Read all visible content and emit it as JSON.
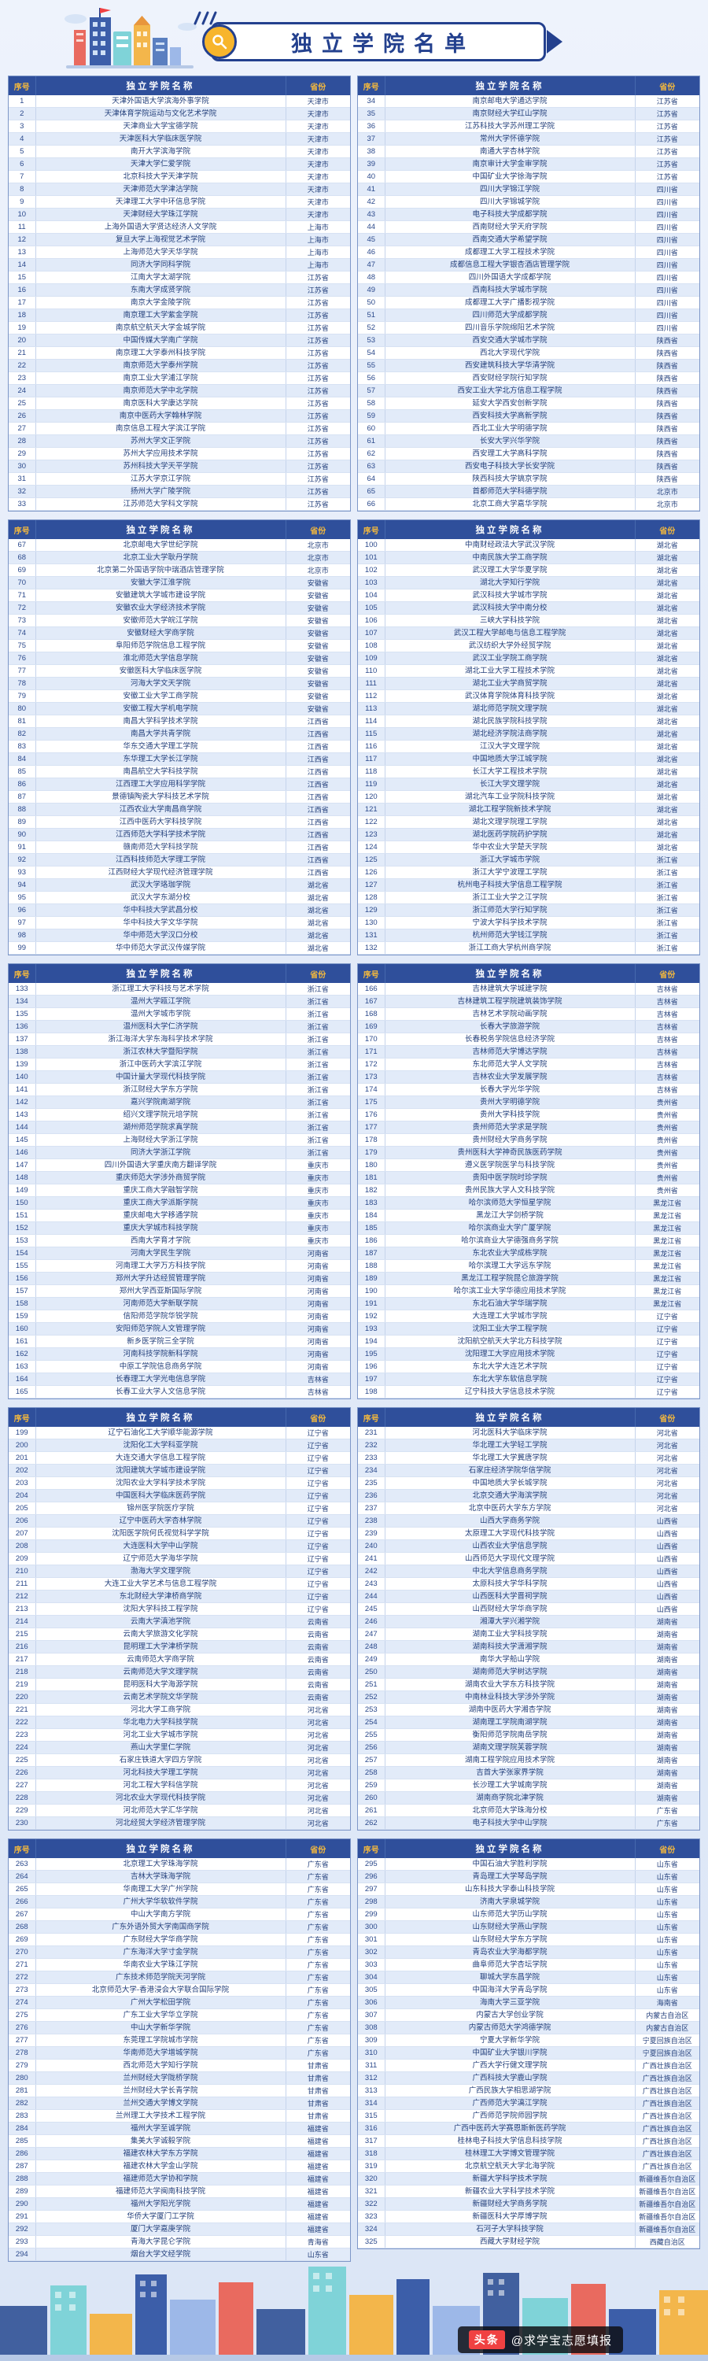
{
  "page": {
    "title": "独立学院名单"
  },
  "footer": {
    "source": "头条",
    "handle": "@求学宝志愿填报"
  },
  "colors": {
    "navy": "#23408e",
    "header_blue": "#2f4f9b",
    "gold": "#f5b93c",
    "alt_row": "#e2ebf9"
  },
  "table": {
    "headers": [
      "序号",
      "独立学院名称",
      "省份"
    ]
  },
  "colleges": [
    [
      "天津外国语大学滨海外事学院",
      "天津市"
    ],
    [
      "天津体育学院运动与文化艺术学院",
      "天津市"
    ],
    [
      "天津商业大学宝德学院",
      "天津市"
    ],
    [
      "天津医科大学临床医学院",
      "天津市"
    ],
    [
      "南开大学滨海学院",
      "天津市"
    ],
    [
      "天津大学仁爱学院",
      "天津市"
    ],
    [
      "北京科技大学天津学院",
      "天津市"
    ],
    [
      "天津师范大学津沽学院",
      "天津市"
    ],
    [
      "天津理工大学中环信息学院",
      "天津市"
    ],
    [
      "天津财经大学珠江学院",
      "天津市"
    ],
    [
      "上海外国语大学贤达经济人文学院",
      "上海市"
    ],
    [
      "复旦大学上海视觉艺术学院",
      "上海市"
    ],
    [
      "上海师范大学天华学院",
      "上海市"
    ],
    [
      "同济大学同科学院",
      "上海市"
    ],
    [
      "江南大学太湖学院",
      "江苏省"
    ],
    [
      "东南大学成贤学院",
      "江苏省"
    ],
    [
      "南京大学金陵学院",
      "江苏省"
    ],
    [
      "南京理工大学紫金学院",
      "江苏省"
    ],
    [
      "南京航空航天大学金城学院",
      "江苏省"
    ],
    [
      "中国传媒大学南广学院",
      "江苏省"
    ],
    [
      "南京理工大学泰州科技学院",
      "江苏省"
    ],
    [
      "南京师范大学泰州学院",
      "江苏省"
    ],
    [
      "南京工业大学浦江学院",
      "江苏省"
    ],
    [
      "南京师范大学中北学院",
      "江苏省"
    ],
    [
      "南京医科大学康达学院",
      "江苏省"
    ],
    [
      "南京中医药大学翰林学院",
      "江苏省"
    ],
    [
      "南京信息工程大学滨江学院",
      "江苏省"
    ],
    [
      "苏州大学文正学院",
      "江苏省"
    ],
    [
      "苏州大学应用技术学院",
      "江苏省"
    ],
    [
      "苏州科技大学天平学院",
      "江苏省"
    ],
    [
      "江苏大学京江学院",
      "江苏省"
    ],
    [
      "扬州大学广陵学院",
      "江苏省"
    ],
    [
      "江苏师范大学科文学院",
      "江苏省"
    ],
    [
      "南京邮电大学通达学院",
      "江苏省"
    ],
    [
      "南京财经大学红山学院",
      "江苏省"
    ],
    [
      "江苏科技大学苏州理工学院",
      "江苏省"
    ],
    [
      "常州大学怀德学院",
      "江苏省"
    ],
    [
      "南通大学杏林学院",
      "江苏省"
    ],
    [
      "南京审计大学金审学院",
      "江苏省"
    ],
    [
      "中国矿业大学徐海学院",
      "江苏省"
    ],
    [
      "四川大学锦江学院",
      "四川省"
    ],
    [
      "四川大学锦城学院",
      "四川省"
    ],
    [
      "电子科技大学成都学院",
      "四川省"
    ],
    [
      "西南财经大学天府学院",
      "四川省"
    ],
    [
      "西南交通大学希望学院",
      "四川省"
    ],
    [
      "成都理工大学工程技术学院",
      "四川省"
    ],
    [
      "成都信息工程大学银杏酒店管理学院",
      "四川省"
    ],
    [
      "四川外国语大学成都学院",
      "四川省"
    ],
    [
      "西南科技大学城市学院",
      "四川省"
    ],
    [
      "成都理工大学广播影视学院",
      "四川省"
    ],
    [
      "四川师范大学成都学院",
      "四川省"
    ],
    [
      "四川音乐学院绵阳艺术学院",
      "四川省"
    ],
    [
      "西安交通大学城市学院",
      "陕西省"
    ],
    [
      "西北大学现代学院",
      "陕西省"
    ],
    [
      "西安建筑科技大学华清学院",
      "陕西省"
    ],
    [
      "西安财经学院行知学院",
      "陕西省"
    ],
    [
      "西安工业大学北方信息工程学院",
      "陕西省"
    ],
    [
      "延安大学西安创新学院",
      "陕西省"
    ],
    [
      "西安科技大学高新学院",
      "陕西省"
    ],
    [
      "西北工业大学明德学院",
      "陕西省"
    ],
    [
      "长安大学兴华学院",
      "陕西省"
    ],
    [
      "西安理工大学高科学院",
      "陕西省"
    ],
    [
      "西安电子科技大学长安学院",
      "陕西省"
    ],
    [
      "陕西科技大学镐京学院",
      "陕西省"
    ],
    [
      "首都师范大学科德学院",
      "北京市"
    ],
    [
      "北京工商大学嘉华学院",
      "北京市"
    ],
    [
      "北京邮电大学世纪学院",
      "北京市"
    ],
    [
      "北京工业大学耿丹学院",
      "北京市"
    ],
    [
      "北京第二外国语学院中瑞酒店管理学院",
      "北京市"
    ],
    [
      "安徽大学江淮学院",
      "安徽省"
    ],
    [
      "安徽建筑大学城市建设学院",
      "安徽省"
    ],
    [
      "安徽农业大学经济技术学院",
      "安徽省"
    ],
    [
      "安徽师范大学皖江学院",
      "安徽省"
    ],
    [
      "安徽财经大学商学院",
      "安徽省"
    ],
    [
      "阜阳师范学院信息工程学院",
      "安徽省"
    ],
    [
      "淮北师范大学信息学院",
      "安徽省"
    ],
    [
      "安徽医科大学临床医学院",
      "安徽省"
    ],
    [
      "河海大学文天学院",
      "安徽省"
    ],
    [
      "安徽工业大学工商学院",
      "安徽省"
    ],
    [
      "安徽工程大学机电学院",
      "安徽省"
    ],
    [
      "南昌大学科学技术学院",
      "江西省"
    ],
    [
      "南昌大学共青学院",
      "江西省"
    ],
    [
      "华东交通大学理工学院",
      "江西省"
    ],
    [
      "东华理工大学长江学院",
      "江西省"
    ],
    [
      "南昌航空大学科技学院",
      "江西省"
    ],
    [
      "江西理工大学应用科学学院",
      "江西省"
    ],
    [
      "景德镇陶瓷大学科技艺术学院",
      "江西省"
    ],
    [
      "江西农业大学南昌商学院",
      "江西省"
    ],
    [
      "江西中医药大学科技学院",
      "江西省"
    ],
    [
      "江西师范大学科学技术学院",
      "江西省"
    ],
    [
      "赣南师范大学科技学院",
      "江西省"
    ],
    [
      "江西科技师范大学理工学院",
      "江西省"
    ],
    [
      "江西财经大学现代经济管理学院",
      "江西省"
    ],
    [
      "武汉大学珞珈学院",
      "湖北省"
    ],
    [
      "武汉大学东湖分校",
      "湖北省"
    ],
    [
      "华中科技大学武昌分校",
      "湖北省"
    ],
    [
      "华中科技大学文华学院",
      "湖北省"
    ],
    [
      "华中师范大学汉口分校",
      "湖北省"
    ],
    [
      "华中师范大学武汉传媒学院",
      "湖北省"
    ],
    [
      "中南财经政法大学武汉学院",
      "湖北省"
    ],
    [
      "中南民族大学工商学院",
      "湖北省"
    ],
    [
      "武汉理工大学华夏学院",
      "湖北省"
    ],
    [
      "湖北大学知行学院",
      "湖北省"
    ],
    [
      "武汉科技大学城市学院",
      "湖北省"
    ],
    [
      "武汉科技大学中南分校",
      "湖北省"
    ],
    [
      "三峡大学科技学院",
      "湖北省"
    ],
    [
      "武汉工程大学邮电与信息工程学院",
      "湖北省"
    ],
    [
      "武汉纺织大学外经贸学院",
      "湖北省"
    ],
    [
      "武汉工业学院工商学院",
      "湖北省"
    ],
    [
      "湖北工业大学工程技术学院",
      "湖北省"
    ],
    [
      "湖北工业大学商贸学院",
      "湖北省"
    ],
    [
      "武汉体育学院体育科技学院",
      "湖北省"
    ],
    [
      "湖北师范学院文理学院",
      "湖北省"
    ],
    [
      "湖北民族学院科技学院",
      "湖北省"
    ],
    [
      "湖北经济学院法商学院",
      "湖北省"
    ],
    [
      "江汉大学文理学院",
      "湖北省"
    ],
    [
      "中国地质大学江城学院",
      "湖北省"
    ],
    [
      "长江大学工程技术学院",
      "湖北省"
    ],
    [
      "长江大学文理学院",
      "湖北省"
    ],
    [
      "湖北汽车工业学院科技学院",
      "湖北省"
    ],
    [
      "湖北工程学院新技术学院",
      "湖北省"
    ],
    [
      "湖北文理学院理工学院",
      "湖北省"
    ],
    [
      "湖北医药学院药护学院",
      "湖北省"
    ],
    [
      "华中农业大学楚天学院",
      "湖北省"
    ],
    [
      "浙江大学城市学院",
      "浙江省"
    ],
    [
      "浙江大学宁波理工学院",
      "浙江省"
    ],
    [
      "杭州电子科技大学信息工程学院",
      "浙江省"
    ],
    [
      "浙江工业大学之江学院",
      "浙江省"
    ],
    [
      "浙江师范大学行知学院",
      "浙江省"
    ],
    [
      "宁波大学科学技术学院",
      "浙江省"
    ],
    [
      "杭州师范大学钱江学院",
      "浙江省"
    ],
    [
      "浙江工商大学杭州商学院",
      "浙江省"
    ],
    [
      "浙江理工大学科技与艺术学院",
      "浙江省"
    ],
    [
      "温州大学瓯江学院",
      "浙江省"
    ],
    [
      "温州大学城市学院",
      "浙江省"
    ],
    [
      "温州医科大学仁济学院",
      "浙江省"
    ],
    [
      "浙江海洋大学东海科学技术学院",
      "浙江省"
    ],
    [
      "浙江农林大学暨阳学院",
      "浙江省"
    ],
    [
      "浙江中医药大学滨江学院",
      "浙江省"
    ],
    [
      "中国计量大学现代科技学院",
      "浙江省"
    ],
    [
      "浙江财经大学东方学院",
      "浙江省"
    ],
    [
      "嘉兴学院南湖学院",
      "浙江省"
    ],
    [
      "绍兴文理学院元培学院",
      "浙江省"
    ],
    [
      "湖州师范学院求真学院",
      "浙江省"
    ],
    [
      "上海财经大学浙江学院",
      "浙江省"
    ],
    [
      "同济大学浙江学院",
      "浙江省"
    ],
    [
      "四川外国语大学重庆南方翻译学院",
      "重庆市"
    ],
    [
      "重庆师范大学涉外商贸学院",
      "重庆市"
    ],
    [
      "重庆工商大学融智学院",
      "重庆市"
    ],
    [
      "重庆工商大学派斯学院",
      "重庆市"
    ],
    [
      "重庆邮电大学移通学院",
      "重庆市"
    ],
    [
      "重庆大学城市科技学院",
      "重庆市"
    ],
    [
      "西南大学育才学院",
      "重庆市"
    ],
    [
      "河南大学民生学院",
      "河南省"
    ],
    [
      "河南理工大学万方科技学院",
      "河南省"
    ],
    [
      "郑州大学升达经贸管理学院",
      "河南省"
    ],
    [
      "郑州大学西亚斯国际学院",
      "河南省"
    ],
    [
      "河南师范大学新联学院",
      "河南省"
    ],
    [
      "信阳师范学院华锐学院",
      "河南省"
    ],
    [
      "安阳师范学院人文管理学院",
      "河南省"
    ],
    [
      "新乡医学院三全学院",
      "河南省"
    ],
    [
      "河南科技学院新科学院",
      "河南省"
    ],
    [
      "中原工学院信息商务学院",
      "河南省"
    ],
    [
      "长春理工大学光电信息学院",
      "吉林省"
    ],
    [
      "长春工业大学人文信息学院",
      "吉林省"
    ],
    [
      "吉林建筑大学城建学院",
      "吉林省"
    ],
    [
      "吉林建筑工程学院建筑装饰学院",
      "吉林省"
    ],
    [
      "吉林艺术学院动画学院",
      "吉林省"
    ],
    [
      "长春大学旅游学院",
      "吉林省"
    ],
    [
      "长春税务学院信息经济学院",
      "吉林省"
    ],
    [
      "吉林师范大学博达学院",
      "吉林省"
    ],
    [
      "东北师范大学人文学院",
      "吉林省"
    ],
    [
      "吉林农业大学发展学院",
      "吉林省"
    ],
    [
      "长春大学光华学院",
      "吉林省"
    ],
    [
      "贵州大学明德学院",
      "贵州省"
    ],
    [
      "贵州大学科技学院",
      "贵州省"
    ],
    [
      "贵州师范大学求是学院",
      "贵州省"
    ],
    [
      "贵州财经大学商务学院",
      "贵州省"
    ],
    [
      "贵州医科大学神奇民族医药学院",
      "贵州省"
    ],
    [
      "遵义医学院医学与科技学院",
      "贵州省"
    ],
    [
      "贵阳中医学院时珍学院",
      "贵州省"
    ],
    [
      "贵州民族大学人文科技学院",
      "贵州省"
    ],
    [
      "哈尔滨师范大学恒星学院",
      "黑龙江省"
    ],
    [
      "黑龙江大学剑桥学院",
      "黑龙江省"
    ],
    [
      "哈尔滨商业大学广厦学院",
      "黑龙江省"
    ],
    [
      "哈尔滨商业大学德强商务学院",
      "黑龙江省"
    ],
    [
      "东北农业大学成栋学院",
      "黑龙江省"
    ],
    [
      "哈尔滨理工大学远东学院",
      "黑龙江省"
    ],
    [
      "黑龙江工程学院昆仑旅游学院",
      "黑龙江省"
    ],
    [
      "哈尔滨工业大学华德应用技术学院",
      "黑龙江省"
    ],
    [
      "东北石油大学华瑞学院",
      "黑龙江省"
    ],
    [
      "大连理工大学城市学院",
      "辽宁省"
    ],
    [
      "沈阳工业大学工程学院",
      "辽宁省"
    ],
    [
      "沈阳航空航天大学北方科技学院",
      "辽宁省"
    ],
    [
      "沈阳理工大学应用技术学院",
      "辽宁省"
    ],
    [
      "东北大学大连艺术学院",
      "辽宁省"
    ],
    [
      "东北大学东软信息学院",
      "辽宁省"
    ],
    [
      "辽宁科技大学信息技术学院",
      "辽宁省"
    ],
    [
      "辽宁石油化工大学顺华能源学院",
      "辽宁省"
    ],
    [
      "沈阳化工大学科亚学院",
      "辽宁省"
    ],
    [
      "大连交通大学信息工程学院",
      "辽宁省"
    ],
    [
      "沈阳建筑大学城市建设学院",
      "辽宁省"
    ],
    [
      "沈阳农业大学科学技术学院",
      "辽宁省"
    ],
    [
      "中国医科大学临床医药学院",
      "辽宁省"
    ],
    [
      "锦州医学院医疗学院",
      "辽宁省"
    ],
    [
      "辽宁中医药大学杏林学院",
      "辽宁省"
    ],
    [
      "沈阳医学院何氏视觉科学学院",
      "辽宁省"
    ],
    [
      "大连医科大学中山学院",
      "辽宁省"
    ],
    [
      "辽宁师范大学海华学院",
      "辽宁省"
    ],
    [
      "渤海大学文理学院",
      "辽宁省"
    ],
    [
      "大连工业大学艺术与信息工程学院",
      "辽宁省"
    ],
    [
      "东北财经大学津桥商学院",
      "辽宁省"
    ],
    [
      "沈阳大学科技工程学院",
      "辽宁省"
    ],
    [
      "云南大学滇池学院",
      "云南省"
    ],
    [
      "云南大学旅游文化学院",
      "云南省"
    ],
    [
      "昆明理工大学津桥学院",
      "云南省"
    ],
    [
      "云南师范大学商学院",
      "云南省"
    ],
    [
      "云南师范大学文理学院",
      "云南省"
    ],
    [
      "昆明医科大学海源学院",
      "云南省"
    ],
    [
      "云南艺术学院文华学院",
      "云南省"
    ],
    [
      "河北大学工商学院",
      "河北省"
    ],
    [
      "华北电力大学科技学院",
      "河北省"
    ],
    [
      "河北工业大学城市学院",
      "河北省"
    ],
    [
      "燕山大学里仁学院",
      "河北省"
    ],
    [
      "石家庄铁道大学四方学院",
      "河北省"
    ],
    [
      "河北科技大学理工学院",
      "河北省"
    ],
    [
      "河北工程大学科信学院",
      "河北省"
    ],
    [
      "河北农业大学现代科技学院",
      "河北省"
    ],
    [
      "河北师范大学汇华学院",
      "河北省"
    ],
    [
      "河北经贸大学经济管理学院",
      "河北省"
    ],
    [
      "河北医科大学临床学院",
      "河北省"
    ],
    [
      "华北理工大学轻工学院",
      "河北省"
    ],
    [
      "华北理工大学冀唐学院",
      "河北省"
    ],
    [
      "石家庄经济学院华信学院",
      "河北省"
    ],
    [
      "中国地质大学长城学院",
      "河北省"
    ],
    [
      "北京交通大学海滨学院",
      "河北省"
    ],
    [
      "北京中医药大学东方学院",
      "河北省"
    ],
    [
      "山西大学商务学院",
      "山西省"
    ],
    [
      "太原理工大学现代科技学院",
      "山西省"
    ],
    [
      "山西农业大学信息学院",
      "山西省"
    ],
    [
      "山西师范大学现代文理学院",
      "山西省"
    ],
    [
      "中北大学信息商务学院",
      "山西省"
    ],
    [
      "太原科技大学华科学院",
      "山西省"
    ],
    [
      "山西医科大学晋祠学院",
      "山西省"
    ],
    [
      "山西财经大学华商学院",
      "山西省"
    ],
    [
      "湘潭大学兴湘学院",
      "湖南省"
    ],
    [
      "湖南工业大学科技学院",
      "湖南省"
    ],
    [
      "湖南科技大学潇湘学院",
      "湖南省"
    ],
    [
      "南华大学船山学院",
      "湖南省"
    ],
    [
      "湖南师范大学树达学院",
      "湖南省"
    ],
    [
      "湖南农业大学东方科技学院",
      "湖南省"
    ],
    [
      "中南林业科技大学涉外学院",
      "湖南省"
    ],
    [
      "湖南中医药大学湘杏学院",
      "湖南省"
    ],
    [
      "湖南理工学院南湖学院",
      "湖南省"
    ],
    [
      "衡阳师范学院南岳学院",
      "湖南省"
    ],
    [
      "湖南文理学院芙蓉学院",
      "湖南省"
    ],
    [
      "湖南工程学院应用技术学院",
      "湖南省"
    ],
    [
      "吉首大学张家界学院",
      "湖南省"
    ],
    [
      "长沙理工大学城南学院",
      "湖南省"
    ],
    [
      "湖南商学院北津学院",
      "湖南省"
    ],
    [
      "北京师范大学珠海分校",
      "广东省"
    ],
    [
      "电子科技大学中山学院",
      "广东省"
    ],
    [
      "北京理工大学珠海学院",
      "广东省"
    ],
    [
      "吉林大学珠海学院",
      "广东省"
    ],
    [
      "华南理工大学广州学院",
      "广东省"
    ],
    [
      "广州大学华软软件学院",
      "广东省"
    ],
    [
      "中山大学南方学院",
      "广东省"
    ],
    [
      "广东外语外贸大学南国商学院",
      "广东省"
    ],
    [
      "广东财经大学华商学院",
      "广东省"
    ],
    [
      "广东海洋大学寸金学院",
      "广东省"
    ],
    [
      "华南农业大学珠江学院",
      "广东省"
    ],
    [
      "广东技术师范学院天河学院",
      "广东省"
    ],
    [
      "北京师范大学-香港浸会大学联合国际学院",
      "广东省"
    ],
    [
      "广州大学松田学院",
      "广东省"
    ],
    [
      "广东工业大学华立学院",
      "广东省"
    ],
    [
      "中山大学新华学院",
      "广东省"
    ],
    [
      "东莞理工学院城市学院",
      "广东省"
    ],
    [
      "华南师范大学增城学院",
      "广东省"
    ],
    [
      "西北师范大学知行学院",
      "甘肃省"
    ],
    [
      "兰州财经大学陇桥学院",
      "甘肃省"
    ],
    [
      "兰州财经大学长青学院",
      "甘肃省"
    ],
    [
      "兰州交通大学博文学院",
      "甘肃省"
    ],
    [
      "兰州理工大学技术工程学院",
      "甘肃省"
    ],
    [
      "福州大学至诚学院",
      "福建省"
    ],
    [
      "集美大学诚毅学院",
      "福建省"
    ],
    [
      "福建农林大学东方学院",
      "福建省"
    ],
    [
      "福建农林大学金山学院",
      "福建省"
    ],
    [
      "福建师范大学协和学院",
      "福建省"
    ],
    [
      "福建师范大学闽南科技学院",
      "福建省"
    ],
    [
      "福州大学阳光学院",
      "福建省"
    ],
    [
      "华侨大学厦门工学院",
      "福建省"
    ],
    [
      "厦门大学嘉庚学院",
      "福建省"
    ],
    [
      "青海大学昆仑学院",
      "青海省"
    ],
    [
      "烟台大学文经学院",
      "山东省"
    ],
    [
      "中国石油大学胜利学院",
      "山东省"
    ],
    [
      "青岛理工大学琴岛学院",
      "山东省"
    ],
    [
      "山东科技大学泰山科技学院",
      "山东省"
    ],
    [
      "济南大学泉城学院",
      "山东省"
    ],
    [
      "山东师范大学历山学院",
      "山东省"
    ],
    [
      "山东财经大学燕山学院",
      "山东省"
    ],
    [
      "山东财经大学东方学院",
      "山东省"
    ],
    [
      "青岛农业大学海都学院",
      "山东省"
    ],
    [
      "曲阜师范大学杏坛学院",
      "山东省"
    ],
    [
      "聊城大学东昌学院",
      "山东省"
    ],
    [
      "中国海洋大学青岛学院",
      "山东省"
    ],
    [
      "海南大学三亚学院",
      "海南省"
    ],
    [
      "内蒙古大学创业学院",
      "内蒙古自治区"
    ],
    [
      "内蒙古师范大学鸿德学院",
      "内蒙古自治区"
    ],
    [
      "宁夏大学新华学院",
      "宁夏回族自治区"
    ],
    [
      "中国矿业大学银川学院",
      "宁夏回族自治区"
    ],
    [
      "广西大学行健文理学院",
      "广西壮族自治区"
    ],
    [
      "广西科技大学鹿山学院",
      "广西壮族自治区"
    ],
    [
      "广西民族大学相思湖学院",
      "广西壮族自治区"
    ],
    [
      "广西师范大学漓江学院",
      "广西壮族自治区"
    ],
    [
      "广西师范学院师园学院",
      "广西壮族自治区"
    ],
    [
      "广西中医药大学赛恩斯新医药学院",
      "广西壮族自治区"
    ],
    [
      "桂林电子科技大学信息科技学院",
      "广西壮族自治区"
    ],
    [
      "桂林理工大学博文管理学院",
      "广西壮族自治区"
    ],
    [
      "北京航空航天大学北海学院",
      "广西壮族自治区"
    ],
    [
      "新疆大学科学技术学院",
      "新疆维吾尔自治区"
    ],
    [
      "新疆农业大学科学技术学院",
      "新疆维吾尔自治区"
    ],
    [
      "新疆财经大学商务学院",
      "新疆维吾尔自治区"
    ],
    [
      "新疆医科大学厚博学院",
      "新疆维吾尔自治区"
    ],
    [
      "石河子大学科技学院",
      "新疆维吾尔自治区"
    ],
    [
      "西藏大学财经学院",
      "西藏自治区"
    ]
  ]
}
